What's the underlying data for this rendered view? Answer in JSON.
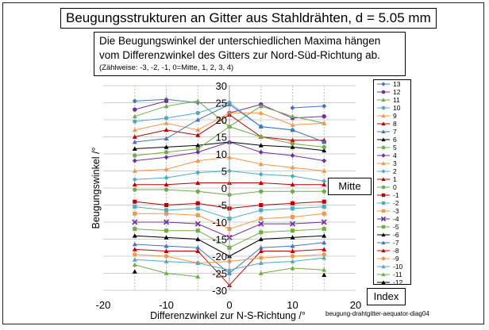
{
  "title": "Beugungsstrukturen an Gitter aus Stahldrähten,  d =  5.05 mm",
  "description": {
    "line1": "Die Beugungswinkel der unterschiedlichen Maxima hängen",
    "line2": "vom Differenzwinkel  des Gitters zur Nord-Süd-Richtung ab.",
    "line3": "(Zählweise: -3, -2, -1, 0=Mitte, 1, 2, 3, 4)"
  },
  "mitte_label": "Mitte",
  "index_label": "Index",
  "caption": "beugung-drahtgitter-aequator-diag04",
  "chart_data": {
    "type": "scatter",
    "xlabel": "Differenzwinkel zur N-S-Richtung /°",
    "ylabel": "Beugungswinkel /°",
    "xlim": [
      -20,
      20
    ],
    "ylim": [
      -30,
      30
    ],
    "xticks": [
      "-20",
      "-10",
      "0",
      "10",
      "20"
    ],
    "yticks": [
      "30",
      "25",
      "20",
      "15",
      "10",
      "5",
      "0",
      "-5",
      "-10",
      "-15",
      "-20",
      "-25",
      "-30"
    ],
    "grid": true,
    "legend_position": "right",
    "x": [
      -15,
      -10,
      -5,
      0,
      5,
      10,
      15
    ],
    "series": [
      {
        "name": "13",
        "color": "#4472c4",
        "marker": "diamond",
        "values": [
          25.5,
          26,
          25,
          25,
          null,
          23.5,
          24
        ]
      },
      {
        "name": "12",
        "color": "#7030a0",
        "marker": "circle",
        "values": [
          23,
          25.5,
          null,
          22,
          24.5,
          20.5,
          21
        ]
      },
      {
        "name": "11",
        "color": "#70ad47",
        "marker": "triangle",
        "values": [
          21,
          24,
          25.5,
          18,
          24,
          21,
          19
        ]
      },
      {
        "name": "10",
        "color": "#4bacc6",
        "marker": "circle",
        "values": [
          19.5,
          20.5,
          22,
          25,
          18,
          17,
          13.5
        ]
      },
      {
        "name": "9",
        "color": "#f79646",
        "marker": "triangle",
        "values": [
          17,
          19,
          17,
          22,
          22,
          18.5,
          19
        ]
      },
      {
        "name": "8",
        "color": "#c00000",
        "marker": "triangle",
        "values": [
          15,
          17,
          15.5,
          21.5,
          15,
          14,
          14
        ]
      },
      {
        "name": "7",
        "color": "#4472c4",
        "marker": "triangle",
        "values": [
          13.5,
          14.5,
          20,
          24.5,
          18,
          17,
          13.5
        ]
      },
      {
        "name": "6",
        "color": "#000000",
        "marker": "triangle",
        "values": [
          11.5,
          12,
          12.5,
          13.5,
          12.5,
          12,
          11
        ]
      },
      {
        "name": "5",
        "color": "#70ad47",
        "marker": "circle",
        "values": [
          9.5,
          10.5,
          11.5,
          18,
          15,
          13,
          12
        ]
      },
      {
        "name": "4",
        "color": "#7030a0",
        "marker": "diamond",
        "values": [
          8,
          9,
          10.5,
          13.5,
          10.5,
          9.5,
          8
        ]
      },
      {
        "name": "3",
        "color": "#f79646",
        "marker": "triangle",
        "values": [
          5,
          5.5,
          8,
          9,
          7,
          6,
          5
        ]
      },
      {
        "name": "2",
        "color": "#4bacc6",
        "marker": "diamond",
        "values": [
          2.5,
          3,
          4.5,
          5,
          4,
          3.5,
          2
        ]
      },
      {
        "name": "1",
        "color": "#c00000",
        "marker": "triangle",
        "values": [
          1,
          1,
          1.5,
          1.5,
          1.5,
          1,
          1
        ]
      },
      {
        "name": "0",
        "color": "#70ad47",
        "marker": "circle",
        "values": [
          -0.5,
          -0.5,
          -1,
          -2,
          -1,
          -1,
          -1
        ]
      },
      {
        "name": "-1",
        "color": "#c00000",
        "marker": "square",
        "values": [
          -4,
          -5,
          -4.5,
          -6,
          -5,
          -4.5,
          -4
        ]
      },
      {
        "name": "-2",
        "color": "#4bacc6",
        "marker": "square",
        "values": [
          -5.5,
          -6.5,
          -6,
          -9,
          -6.5,
          -6,
          -5.5
        ]
      },
      {
        "name": "-3",
        "color": "#f79646",
        "marker": "square",
        "values": [
          -7.5,
          -7.5,
          -8,
          -12,
          -9,
          -8.5,
          -7.5
        ]
      },
      {
        "name": "-4",
        "color": "#7030a0",
        "marker": "cross",
        "values": [
          -10,
          -10,
          -10.5,
          -14.5,
          -10.5,
          -10.5,
          -10
        ]
      },
      {
        "name": "-5",
        "color": "#70ad47",
        "marker": "square",
        "values": [
          -12,
          -12.5,
          -12.5,
          -17.5,
          -13,
          -12.5,
          -12
        ]
      },
      {
        "name": "-6",
        "color": "#000000",
        "marker": "triangle",
        "values": [
          -14,
          -14.5,
          -15,
          -20,
          -15,
          -14.5,
          -14
        ]
      },
      {
        "name": "-7",
        "color": "#4472c4",
        "marker": "triangle",
        "values": [
          -16.5,
          -17,
          -17.5,
          -25,
          -17.5,
          -17,
          -16
        ]
      },
      {
        "name": "-8",
        "color": "#c00000",
        "marker": "triangle",
        "values": [
          -18,
          -18.5,
          -18.5,
          -28.5,
          -18.5,
          -18.5,
          -18
        ]
      },
      {
        "name": "-9",
        "color": "#f79646",
        "marker": "circle",
        "values": [
          -19.5,
          -20,
          -22,
          -21.5,
          -20.5,
          -20,
          -19.5
        ]
      },
      {
        "name": "-10",
        "color": "#4bacc6",
        "marker": "triangle",
        "values": [
          -21,
          -21.5,
          -22,
          -24,
          -22,
          -21.5,
          -20.5
        ]
      },
      {
        "name": "-11",
        "color": "#70ad47",
        "marker": "triangle",
        "values": [
          -22.5,
          -25,
          -26,
          null,
          -25,
          -23.5,
          -24
        ]
      },
      {
        "name": "-12",
        "color": "#000000",
        "marker": "triangle",
        "values": [
          -24.5,
          null,
          null,
          null,
          null,
          null,
          -25.5
        ]
      }
    ]
  }
}
